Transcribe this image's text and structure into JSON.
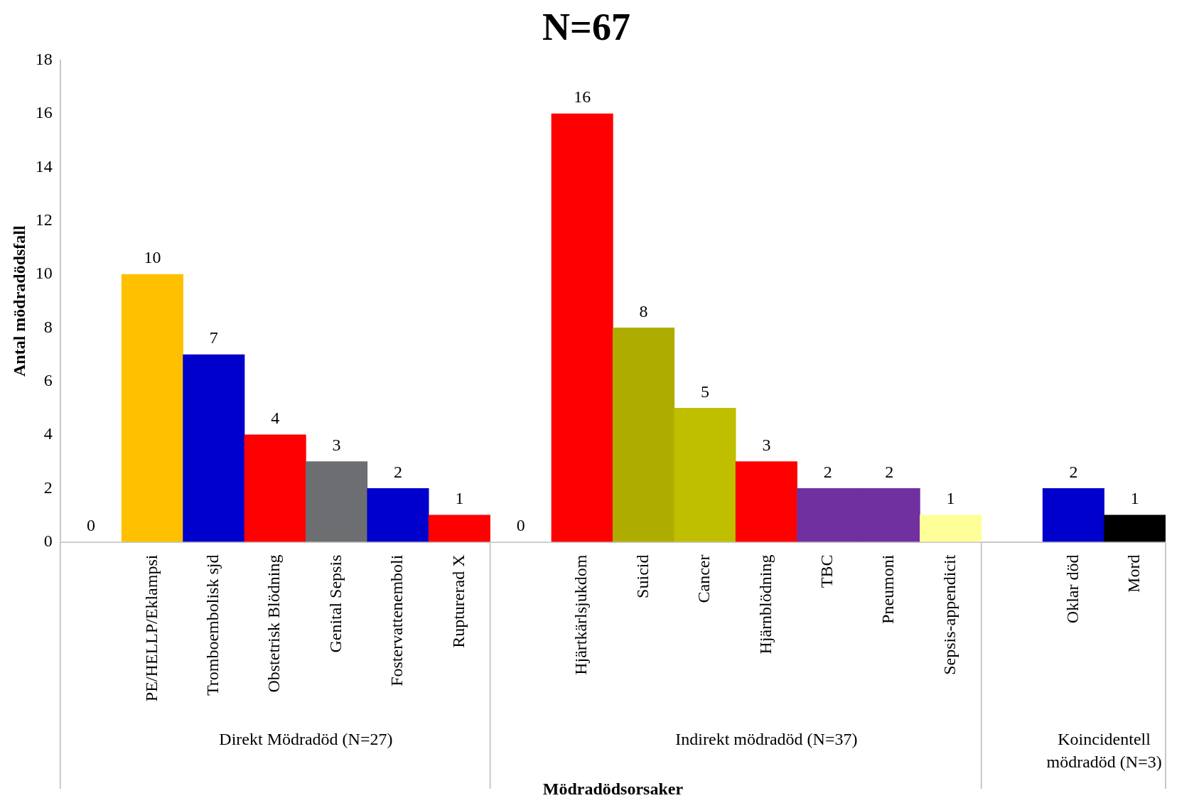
{
  "chart_data": {
    "type": "bar",
    "title": "N=67",
    "xlabel": "Mödradödsorsaker",
    "ylabel": "Antal mödradödsfall",
    "categories": [
      null,
      "PE/HELLP/Eklampsi",
      "Tromboembolisk sjd",
      "Obstetrisk Blödning",
      "Genital Sepsis",
      "Fostervattenemboli",
      "Rupturerad X",
      null,
      "Hjärtkärlsjukdom",
      "Suicid",
      "Cancer",
      "Hjärnblödning",
      "TBC",
      "Pneumoni",
      "Sepsis-appendicit",
      null,
      "Oklar död",
      "Mord"
    ],
    "values": [
      0,
      10,
      7,
      4,
      3,
      2,
      1,
      0,
      16,
      8,
      5,
      3,
      2,
      2,
      1,
      null,
      2,
      1
    ],
    "colors": [
      "#ffffff",
      "#ffc000",
      "#0000cc",
      "#ff0000",
      "#6d6e71",
      "#0000cc",
      "#ff0000",
      "#ffffff",
      "#ff0000",
      "#afac00",
      "#bfbf00",
      "#ff0000",
      "#7030a0",
      "#7030a0",
      "#ffff99",
      "#ffffff",
      "#0000cc",
      "#000000"
    ],
    "ylim": [
      0,
      18
    ],
    "yticks": [
      0,
      2,
      4,
      6,
      8,
      10,
      12,
      14,
      16,
      18
    ],
    "data_labels": true,
    "annotations": [
      "Direkt Mödradöd (N=27)",
      "Indirekt mödradöd (N=37)",
      "Koincidentell mödradöd (N=3)"
    ]
  }
}
